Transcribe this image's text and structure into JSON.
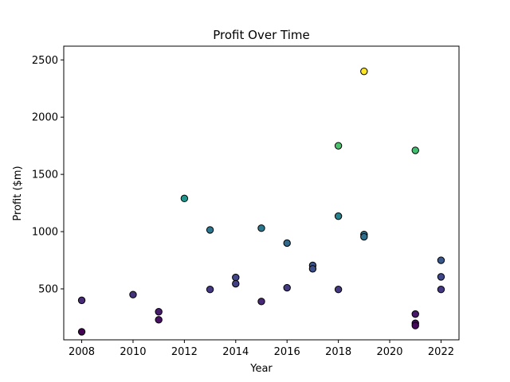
{
  "chart_data": {
    "type": "scatter",
    "title": "Profit Over Time",
    "xlabel": "Year",
    "ylabel": "Profit ($m)",
    "xlim": [
      2007.3,
      2022.7
    ],
    "ylim": [
      55,
      2620
    ],
    "xticks": [
      2008,
      2010,
      2012,
      2014,
      2016,
      2018,
      2020,
      2022
    ],
    "yticks": [
      500,
      1000,
      1500,
      2000,
      2500
    ],
    "grid": false,
    "colormap": "viridis",
    "marker_edge_color": "#000000",
    "points": [
      {
        "x": 2008,
        "y": 400
      },
      {
        "x": 2008,
        "y": 125
      },
      {
        "x": 2010,
        "y": 450
      },
      {
        "x": 2011,
        "y": 300
      },
      {
        "x": 2011,
        "y": 230
      },
      {
        "x": 2012,
        "y": 1290
      },
      {
        "x": 2013,
        "y": 1015
      },
      {
        "x": 2013,
        "y": 495
      },
      {
        "x": 2014,
        "y": 600
      },
      {
        "x": 2014,
        "y": 545
      },
      {
        "x": 2015,
        "y": 1030
      },
      {
        "x": 2015,
        "y": 390
      },
      {
        "x": 2016,
        "y": 900
      },
      {
        "x": 2016,
        "y": 510
      },
      {
        "x": 2017,
        "y": 705
      },
      {
        "x": 2017,
        "y": 675
      },
      {
        "x": 2018,
        "y": 1750
      },
      {
        "x": 2018,
        "y": 1135
      },
      {
        "x": 2018,
        "y": 495
      },
      {
        "x": 2019,
        "y": 2400
      },
      {
        "x": 2019,
        "y": 975
      },
      {
        "x": 2019,
        "y": 955
      },
      {
        "x": 2021,
        "y": 1710
      },
      {
        "x": 2021,
        "y": 280
      },
      {
        "x": 2021,
        "y": 200
      },
      {
        "x": 2021,
        "y": 180
      },
      {
        "x": 2022,
        "y": 750
      },
      {
        "x": 2022,
        "y": 605
      },
      {
        "x": 2022,
        "y": 495
      }
    ]
  }
}
